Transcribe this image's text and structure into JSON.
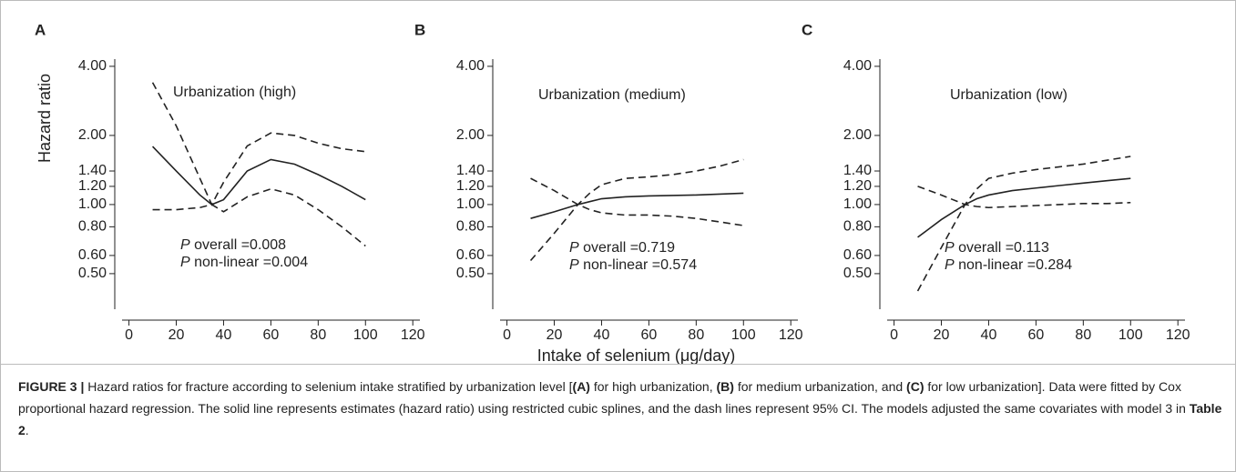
{
  "caption": [
    {
      "text": "FIGURE 3 |",
      "bold": true
    },
    {
      "text": " Hazard ratios for fracture according to selenium intake stratified by urbanization level [",
      "bold": false
    },
    {
      "text": "(A)",
      "bold": true
    },
    {
      "text": " for high urbanization, ",
      "bold": false
    },
    {
      "text": "(B)",
      "bold": true
    },
    {
      "text": " for medium urbanization, and ",
      "bold": false
    },
    {
      "text": "(C)",
      "bold": true
    },
    {
      "text": " for low urbanization]. Data were fitted by Cox proportional hazard regression. The solid line represents estimates (hazard ratio) using restricted cubic splines, and the dash lines represent 95% CI. The models adjusted the same covariates with model 3 in ",
      "bold": false
    },
    {
      "text": "Table 2",
      "bold": true
    },
    {
      "text": ".",
      "bold": false
    }
  ],
  "chart_data": [
    {
      "type": "line",
      "panel_label": "A",
      "title": "Urbanization (high)",
      "y_label": "Hazard ratio",
      "annotations": [
        {
          "italic": "P",
          "text": " overall =0.008"
        },
        {
          "italic": "P",
          "text": " non-linear =0.004"
        }
      ],
      "x": [
        10,
        20,
        30,
        35,
        40,
        50,
        60,
        70,
        80,
        90,
        100
      ],
      "series": [
        {
          "style": "solid",
          "color": "#222222",
          "values": [
            1.79,
            1.4,
            1.1,
            1.0,
            1.05,
            1.4,
            1.57,
            1.5,
            1.35,
            1.2,
            1.05
          ]
        },
        {
          "style": "dashed",
          "color": "#222222",
          "values": [
            3.4,
            2.2,
            1.3,
            1.0,
            1.25,
            1.8,
            2.05,
            2.0,
            1.85,
            1.75,
            1.7
          ]
        },
        {
          "style": "dashed",
          "color": "#222222",
          "values": [
            0.95,
            0.95,
            0.97,
            1.0,
            0.93,
            1.08,
            1.17,
            1.1,
            0.95,
            0.8,
            0.66
          ]
        }
      ],
      "xlim": [
        -6,
        123
      ],
      "xticks": [
        0,
        20,
        40,
        60,
        80,
        100,
        120
      ],
      "ylim": [
        0.35,
        4.3
      ],
      "log_y": true,
      "yticks": [
        {
          "value": 0.5,
          "label": "0.50"
        },
        {
          "value": 0.6,
          "label": "0.60"
        },
        {
          "value": 0.8,
          "label": "0.80"
        },
        {
          "value": 1,
          "label": "1.00"
        },
        {
          "value": 1.2,
          "label": "1.20"
        },
        {
          "value": 1.4,
          "label": "1.40"
        },
        {
          "value": 2,
          "label": "2.00"
        },
        {
          "value": 4,
          "label": "4.00"
        }
      ]
    },
    {
      "type": "line",
      "panel_label": "B",
      "title": "Urbanization (medium)",
      "x_label": "Intake of selenium (μg/day)",
      "annotations": [
        {
          "italic": "P",
          "text": " overall =0.719"
        },
        {
          "italic": "P",
          "text": " non-linear =0.574"
        }
      ],
      "x": [
        10,
        20,
        30,
        35,
        40,
        50,
        60,
        70,
        80,
        90,
        100
      ],
      "series": [
        {
          "style": "solid",
          "color": "#222222",
          "values": [
            0.87,
            0.93,
            1.0,
            1.03,
            1.06,
            1.08,
            1.09,
            1.095,
            1.1,
            1.11,
            1.12
          ]
        },
        {
          "style": "dashed",
          "color": "#222222",
          "values": [
            0.57,
            0.75,
            1.0,
            1.12,
            1.22,
            1.3,
            1.32,
            1.35,
            1.4,
            1.47,
            1.57
          ]
        },
        {
          "style": "dashed",
          "color": "#222222",
          "values": [
            1.3,
            1.15,
            1.0,
            0.95,
            0.92,
            0.9,
            0.9,
            0.89,
            0.87,
            0.84,
            0.81
          ]
        }
      ],
      "xlim": [
        -6,
        123
      ],
      "xticks": [
        0,
        20,
        40,
        60,
        80,
        100,
        120
      ],
      "ylim": [
        0.35,
        4.3
      ],
      "log_y": true,
      "yticks": [
        {
          "value": 0.5,
          "label": "0.50"
        },
        {
          "value": 0.6,
          "label": "0.60"
        },
        {
          "value": 0.8,
          "label": "0.80"
        },
        {
          "value": 1,
          "label": "1.00"
        },
        {
          "value": 1.2,
          "label": "1.20"
        },
        {
          "value": 1.4,
          "label": "1.40"
        },
        {
          "value": 2,
          "label": "2.00"
        },
        {
          "value": 4,
          "label": "4.00"
        }
      ]
    },
    {
      "type": "line",
      "panel_label": "C",
      "title": "Urbanization (low)",
      "annotations": [
        {
          "italic": "P",
          "text": " overall =0.113"
        },
        {
          "italic": "P",
          "text": " non-linear =0.284"
        }
      ],
      "x": [
        10,
        20,
        30,
        35,
        40,
        50,
        60,
        70,
        80,
        90,
        100
      ],
      "series": [
        {
          "style": "solid",
          "color": "#222222",
          "values": [
            0.72,
            0.86,
            1.0,
            1.06,
            1.1,
            1.15,
            1.18,
            1.21,
            1.24,
            1.27,
            1.3
          ]
        },
        {
          "style": "dashed",
          "color": "#222222",
          "values": [
            0.42,
            0.65,
            1.0,
            1.17,
            1.3,
            1.37,
            1.42,
            1.46,
            1.5,
            1.56,
            1.62
          ]
        },
        {
          "style": "dashed",
          "color": "#222222",
          "values": [
            1.2,
            1.1,
            1.0,
            0.98,
            0.97,
            0.98,
            0.99,
            1.0,
            1.01,
            1.01,
            1.02
          ]
        }
      ],
      "xlim": [
        -6,
        123
      ],
      "xticks": [
        0,
        20,
        40,
        60,
        80,
        100,
        120
      ],
      "ylim": [
        0.35,
        4.3
      ],
      "log_y": true,
      "yticks": [
        {
          "value": 0.5,
          "label": "0.50"
        },
        {
          "value": 0.6,
          "label": "0.60"
        },
        {
          "value": 0.8,
          "label": "0.80"
        },
        {
          "value": 1,
          "label": "1.00"
        },
        {
          "value": 1.2,
          "label": "1.20"
        },
        {
          "value": 1.4,
          "label": "1.40"
        },
        {
          "value": 2,
          "label": "2.00"
        },
        {
          "value": 4,
          "label": "4.00"
        }
      ]
    }
  ]
}
